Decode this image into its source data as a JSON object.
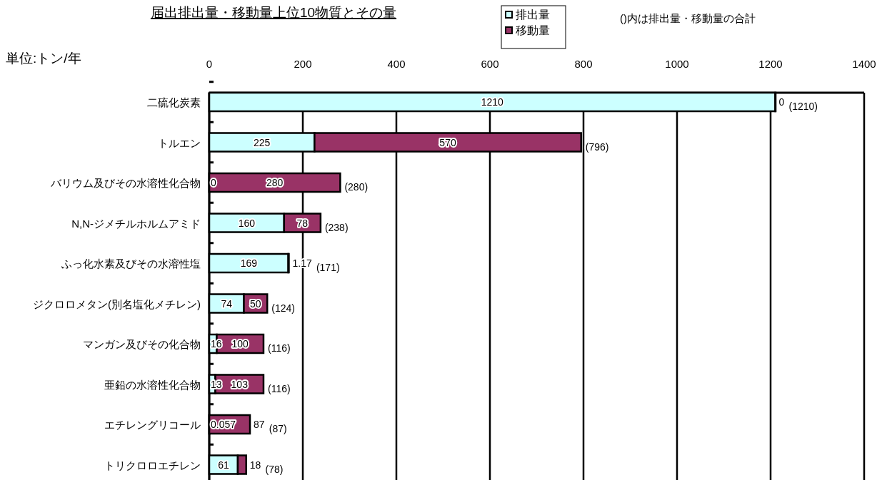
{
  "chart_data": {
    "type": "bar",
    "orientation": "horizontal",
    "stacked": true,
    "title": "届出排出量・移動量上位10物質とその量",
    "annotations": [
      "単位:トン/年",
      "()内は排出量・移動量の合計"
    ],
    "categories": [
      "二硫化炭素",
      "トルエン",
      "バリウム及びその水溶性化合物",
      "N,N-ジメチルホルムアミド",
      "ふっ化水素及びその水溶性塩",
      "ジクロロメタン(別名塩化メチレン)",
      "マンガン及びその化合物",
      "亜鉛の水溶性化合物",
      "エチレングリコール",
      "トリクロロエチレン"
    ],
    "series": [
      {
        "name": "排出量",
        "color": "#ccffff",
        "values": [
          1210,
          225,
          0,
          160,
          169,
          74,
          16,
          13,
          0.057,
          61
        ],
        "value_labels": [
          "1210",
          "225",
          "0",
          "160",
          "169",
          "74",
          "16",
          "13",
          "0.057",
          "61"
        ]
      },
      {
        "name": "移動量",
        "color": "#993366",
        "values": [
          0,
          570,
          280,
          78,
          1.17,
          50,
          100,
          103,
          87,
          18
        ],
        "value_labels": [
          "0",
          "570",
          "280",
          "78",
          "1.17",
          "50",
          "100",
          "103",
          "87",
          "18"
        ]
      }
    ],
    "totals": [
      "(1210)",
      "(796)",
      "(280)",
      "(238)",
      "(171)",
      "(124)",
      "(116)",
      "(116)",
      "(87)",
      "(78)"
    ],
    "data_labels": true,
    "xlim": [
      0,
      1400
    ],
    "xticks": [
      0,
      200,
      400,
      600,
      800,
      1000,
      1200,
      1400
    ],
    "grid": "x",
    "legend": "top"
  }
}
